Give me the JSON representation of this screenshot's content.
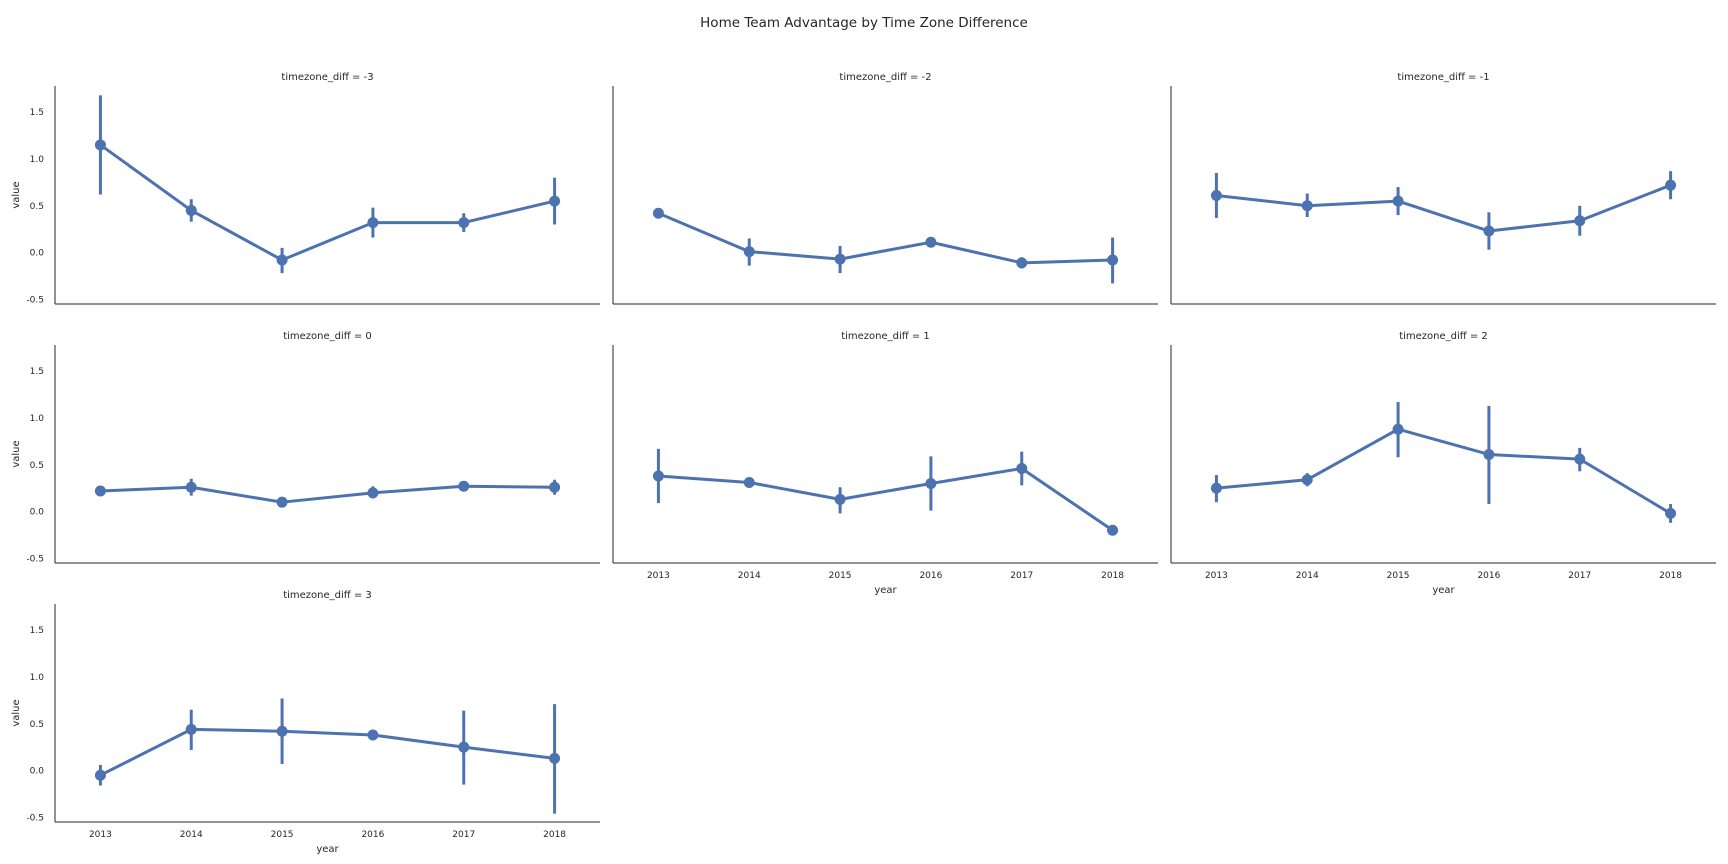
{
  "figure": {
    "title": "Home Team Advantage by Time Zone Difference"
  },
  "chart_data": {
    "type": "line",
    "title": "Home Team Advantage by Time Zone Difference",
    "facet_variable": "timezone_diff",
    "xlabel": "year",
    "ylabel": "value",
    "categories": [
      "2013",
      "2014",
      "2015",
      "2016",
      "2017",
      "2018"
    ],
    "ylim": [
      -0.55,
      1.78
    ],
    "yticks": [
      "-0.5",
      "0.0",
      "0.5",
      "1.0",
      "1.5"
    ],
    "yticks_values": [
      -0.5,
      0.0,
      0.5,
      1.0,
      1.5
    ],
    "grid": false,
    "series_color": "#4c72b0",
    "panels": [
      {
        "title": "timezone_diff = -3",
        "values": [
          1.15,
          0.45,
          -0.08,
          0.32,
          0.32,
          0.55
        ],
        "ci_low": [
          0.62,
          0.33,
          -0.22,
          0.16,
          0.22,
          0.3
        ],
        "ci_high": [
          1.68,
          0.57,
          0.05,
          0.48,
          0.42,
          0.8
        ]
      },
      {
        "title": "timezone_diff = -2",
        "values": [
          0.42,
          0.01,
          -0.07,
          0.11,
          -0.11,
          -0.08
        ],
        "ci_low": [
          0.42,
          -0.14,
          -0.22,
          0.1,
          -0.17,
          -0.33
        ],
        "ci_high": [
          0.42,
          0.15,
          0.07,
          0.13,
          -0.05,
          0.16
        ]
      },
      {
        "title": "timezone_diff = -1",
        "values": [
          0.61,
          0.5,
          0.55,
          0.23,
          0.34,
          0.72
        ],
        "ci_low": [
          0.37,
          0.38,
          0.4,
          0.03,
          0.18,
          0.57
        ],
        "ci_high": [
          0.85,
          0.63,
          0.7,
          0.43,
          0.5,
          0.87
        ]
      },
      {
        "title": "timezone_diff = 0",
        "values": [
          0.22,
          0.26,
          0.1,
          0.2,
          0.27,
          0.26
        ],
        "ci_low": [
          0.2,
          0.17,
          0.06,
          0.14,
          0.24,
          0.18
        ],
        "ci_high": [
          0.24,
          0.35,
          0.14,
          0.27,
          0.3,
          0.34
        ]
      },
      {
        "title": "timezone_diff = 1",
        "values": [
          0.38,
          0.31,
          0.13,
          0.3,
          0.46,
          -0.2
        ],
        "ci_low": [
          0.09,
          0.28,
          -0.02,
          0.01,
          0.28,
          -0.25
        ],
        "ci_high": [
          0.67,
          0.34,
          0.26,
          0.59,
          0.64,
          -0.15
        ]
      },
      {
        "title": "timezone_diff = 2",
        "values": [
          0.25,
          0.34,
          0.88,
          0.61,
          0.56,
          -0.02
        ],
        "ci_low": [
          0.1,
          0.27,
          0.58,
          0.08,
          0.43,
          -0.12
        ],
        "ci_high": [
          0.39,
          0.41,
          1.17,
          1.13,
          0.68,
          0.08
        ]
      },
      {
        "title": "timezone_diff = 3",
        "values": [
          -0.05,
          0.44,
          0.42,
          0.38,
          0.25,
          0.13
        ],
        "ci_low": [
          -0.16,
          0.22,
          0.07,
          0.35,
          -0.15,
          -0.46
        ],
        "ci_high": [
          0.06,
          0.65,
          0.77,
          0.41,
          0.64,
          0.71
        ]
      }
    ]
  }
}
